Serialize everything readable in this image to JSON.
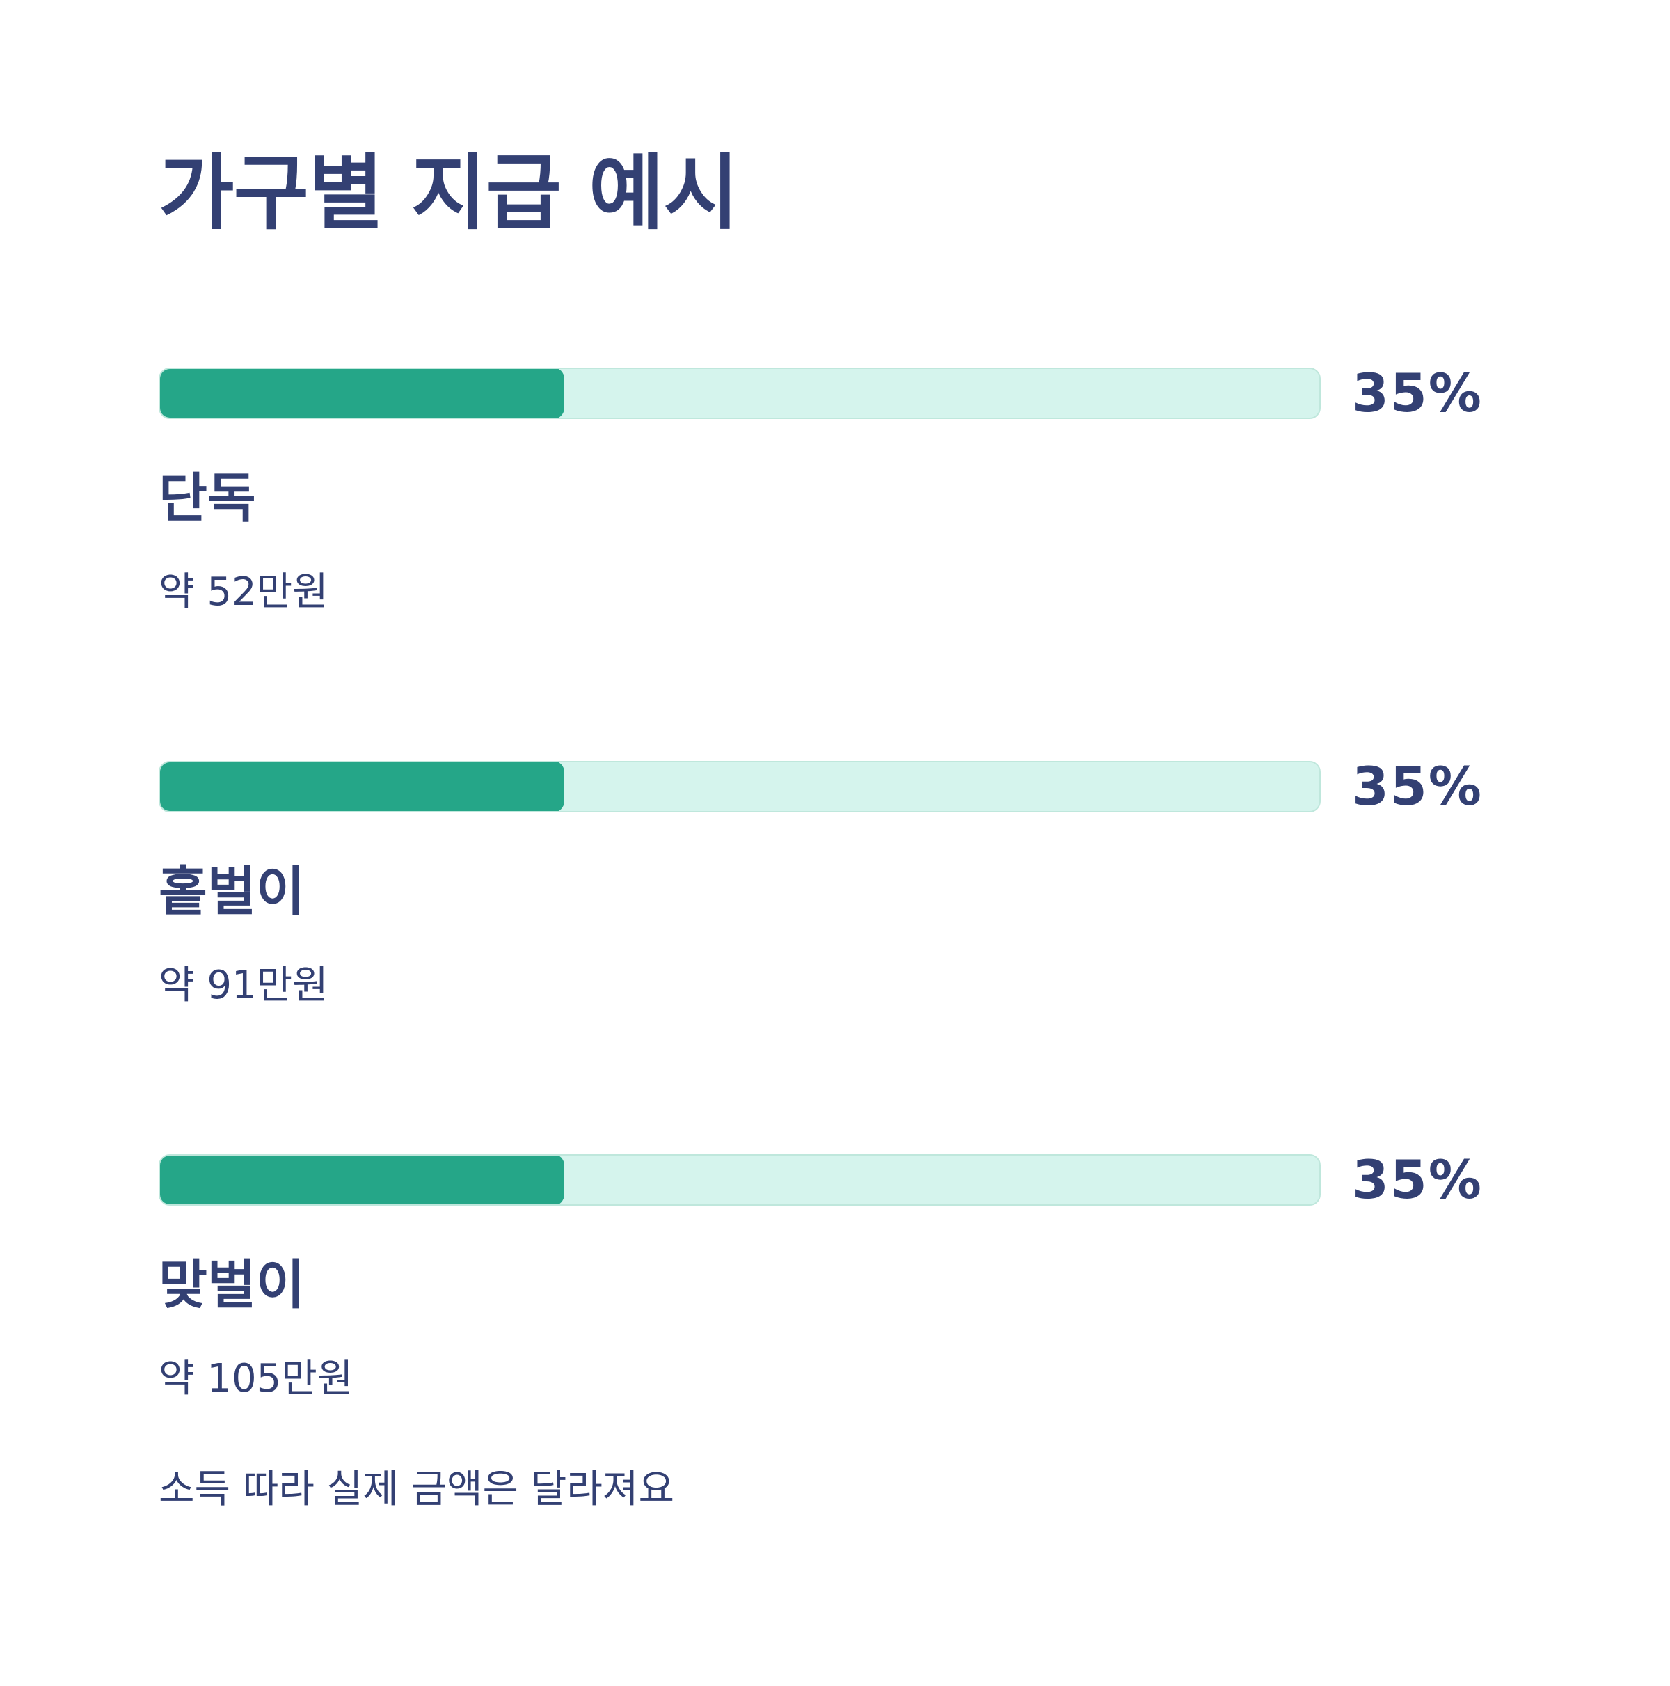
{
  "title": "가구별 지급 예시",
  "colors": {
    "text": "#334073",
    "bar_fill": "#25a688",
    "bar_track": "#d5f4ed"
  },
  "items": [
    {
      "label": "단독",
      "percent_label": "35%",
      "progress": 0.35,
      "amount": "약 52만원"
    },
    {
      "label": "홑벌이",
      "percent_label": "35%",
      "progress": 0.35,
      "amount": "약 91만원"
    },
    {
      "label": "맞벌이",
      "percent_label": "35%",
      "progress": 0.35,
      "amount": "약 105만원"
    }
  ],
  "note": "소득 따라 실제 금액은 달라져요"
}
